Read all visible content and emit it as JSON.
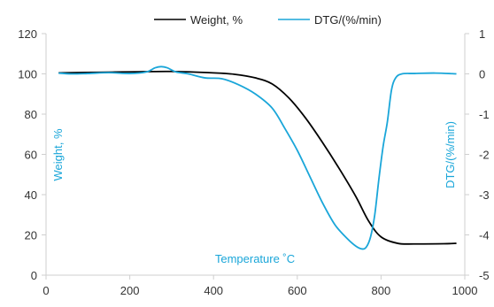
{
  "colors": {
    "weight": "#000000",
    "dtg": "#1aa6d9",
    "axis": "#333333",
    "frame": "#cfcfcf"
  },
  "chart_data": {
    "type": "line",
    "xlabel": "Temperature ˚C",
    "ylabel": "Weight, %",
    "y2label": "DTG/(%/min)",
    "xlim": [
      0,
      1000
    ],
    "ylim": [
      0,
      120
    ],
    "y2lim": [
      -5,
      1
    ],
    "x_ticks": [
      0,
      200,
      400,
      600,
      800,
      1000
    ],
    "y_ticks": [
      0,
      20,
      40,
      60,
      80,
      100,
      120
    ],
    "y2_ticks": [
      -5,
      -4,
      -3,
      -2,
      -1,
      0,
      1
    ],
    "x_tick_labels": [
      "0",
      "200",
      "400",
      "600",
      "800",
      "1000"
    ],
    "y_tick_labels": [
      "0",
      "20",
      "40",
      "60",
      "80",
      "100",
      "120"
    ],
    "y2_tick_labels": [
      "-5",
      "-4",
      "-3",
      "-2",
      "-1",
      "0",
      "1"
    ],
    "grid": false,
    "legend": {
      "placement": "top"
    },
    "series": [
      {
        "name": "Weight, %",
        "axis": "left",
        "x": [
          30,
          100,
          200,
          300,
          400,
          450,
          500,
          540,
          580,
          620,
          660,
          700,
          740,
          770,
          800,
          840,
          880,
          950,
          980
        ],
        "values": [
          100.5,
          100.7,
          101,
          101.2,
          100.5,
          99.8,
          98,
          95,
          88,
          78,
          66,
          53,
          39,
          27,
          19,
          15.8,
          15.5,
          15.6,
          15.8
        ]
      },
      {
        "name": "DTG/(%/min)",
        "axis": "right",
        "x": [
          30,
          60,
          100,
          150,
          200,
          240,
          260,
          275,
          290,
          310,
          340,
          380,
          420,
          460,
          500,
          540,
          570,
          600,
          630,
          660,
          690,
          720,
          740,
          755,
          765,
          775,
          785,
          795,
          805,
          815,
          825,
          835,
          850,
          880,
          930,
          980
        ],
        "values": [
          0.02,
          0.0,
          0.01,
          0.03,
          0.01,
          0.05,
          0.15,
          0.18,
          0.15,
          0.05,
          0.0,
          -0.1,
          -0.12,
          -0.27,
          -0.5,
          -0.85,
          -1.35,
          -1.9,
          -2.55,
          -3.2,
          -3.75,
          -4.1,
          -4.28,
          -4.35,
          -4.3,
          -4.05,
          -3.5,
          -2.6,
          -1.8,
          -1.2,
          -0.4,
          -0.1,
          0.0,
          0.01,
          0.02,
          0.0
        ]
      }
    ]
  }
}
